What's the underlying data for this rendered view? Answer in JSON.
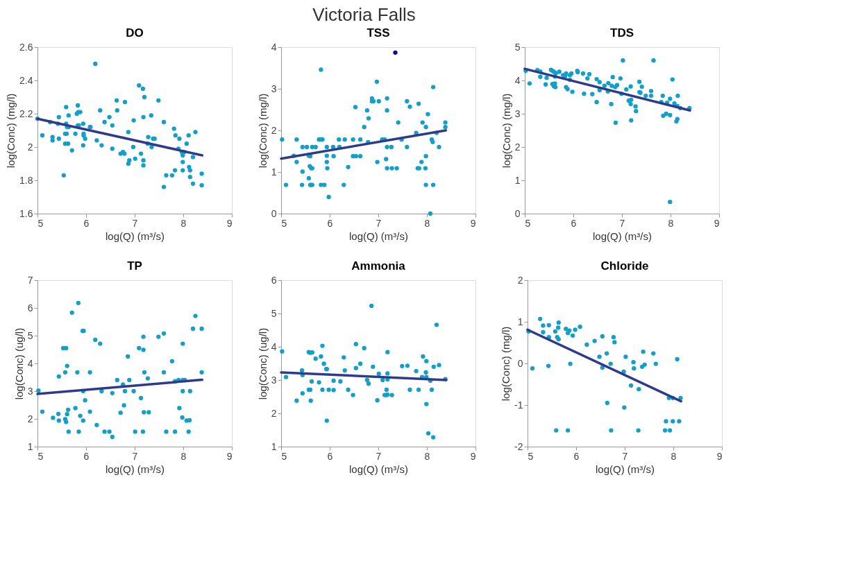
{
  "chart_data": [
    {
      "type": "scatter",
      "title": "DO",
      "annotations": [
        "Victoria Falls"
      ],
      "xlabel": "log(Q) (m³/s)",
      "ylabel": "log(Conc) (mg/l)",
      "xlim": [
        5,
        9
      ],
      "xticks": [
        5,
        6,
        7,
        8,
        9
      ],
      "ylim": [
        1.6,
        2.6
      ],
      "yticks": [
        1.6,
        1.8,
        2,
        2.2,
        2.4,
        2.6
      ],
      "grid": false,
      "marker": "circle",
      "series": [
        {
          "color": "#149fc8",
          "x": [
            5.0,
            5.1,
            5.26,
            5.31,
            5.31,
            5.42,
            5.44,
            5.44,
            5.54,
            5.57,
            5.6,
            5.57,
            5.63,
            5.59,
            5.59,
            5.61,
            5.64,
            5.64,
            5.71,
            5.78,
            5.83,
            5.81,
            5.84,
            5.88,
            5.83,
            5.85,
            5.94,
            5.94,
            5.95,
            5.95,
            5.98,
            6.08,
            6.09,
            6.19,
            6.22,
            6.29,
            6.32,
            6.38,
            6.48,
            6.54,
            6.54,
            6.63,
            6.64,
            6.71,
            6.76,
            6.79,
            6.8,
            6.87,
            6.89,
            6.87,
            6.97,
            6.98,
            7.01,
            7.09,
            7.13,
            7.17,
            7.18,
            7.2,
            7.18,
            7.18,
            7.28,
            7.27,
            7.34,
            7.35,
            7.38,
            7.41,
            7.49,
            7.6,
            7.6,
            7.65,
            7.77,
            7.81,
            7.83,
            7.84,
            7.9,
            7.92,
            7.97,
            8.02,
            7.99,
            7.99,
            7.99,
            8.07,
            8.11,
            8.12,
            8.14,
            8.14,
            8.2,
            8.2,
            8.25,
            8.38,
            8.38
          ],
          "values": [
            2.17,
            2.07,
            2.15,
            2.06,
            2.04,
            2.14,
            2.18,
            2.05,
            1.83,
            2.08,
            2.08,
            2.02,
            2.02,
            2.24,
            2.14,
            2.12,
            2.12,
            2.19,
            1.98,
            2.08,
            2.25,
            2.2,
            2.21,
            2.21,
            2.13,
            2.13,
            2.14,
            2.01,
            2.08,
            2.07,
            2.05,
            2.12,
            2.12,
            2.5,
            2.04,
            2.22,
            2.01,
            2.15,
            2.18,
            2.13,
            1.99,
            2.28,
            2.22,
            1.96,
            1.97,
            1.96,
            2.27,
            1.9,
            1.92,
            2.09,
            2.0,
            2.16,
            1.93,
            2.37,
            1.96,
            2.35,
            2.18,
            2.3,
            1.92,
            1.89,
            2.06,
            2.02,
            2.19,
            2.0,
            2.05,
            2.05,
            2.28,
            2.15,
            1.76,
            1.83,
            1.83,
            2.11,
            1.86,
            2.07,
            1.99,
            2.05,
            1.97,
            1.97,
            1.95,
            1.91,
            1.86,
            2.02,
            2.07,
            1.88,
            1.86,
            1.82,
            1.94,
            1.78,
            2.09,
            1.84,
            1.77
          ]
        },
        {
          "type": "line",
          "marker": "none",
          "color": "#2e3a8c",
          "x": [
            5.0,
            8.39
          ],
          "values": [
            2.17,
            1.95
          ]
        }
      ]
    },
    {
      "type": "scatter",
      "title": "TSS",
      "xlabel": "log(Q) (m³/s)",
      "ylabel": "log(Conc) (mg/l)",
      "xlim": [
        5,
        9
      ],
      "xticks": [
        5,
        6,
        7,
        8,
        9
      ],
      "ylim": [
        0,
        4
      ],
      "yticks": [
        0,
        1,
        2,
        3,
        4
      ],
      "grid": false,
      "marker": "circle",
      "series": [
        {
          "color": "#149fc8",
          "x": [
            5.02,
            5.1,
            5.26,
            5.32,
            5.32,
            5.43,
            5.44,
            5.44,
            5.53,
            5.57,
            5.57,
            5.6,
            5.59,
            5.62,
            5.64,
            5.6,
            5.62,
            5.64,
            5.64,
            5.71,
            5.78,
            5.82,
            5.85,
            5.82,
            5.82,
            5.89,
            5.94,
            5.94,
            5.94,
            5.95,
            5.98,
            6.07,
            6.08,
            6.19,
            6.2,
            6.29,
            6.31,
            6.38,
            6.48,
            6.48,
            6.54,
            6.53,
            6.63,
            6.63,
            6.71,
            6.77,
            6.79,
            6.8,
            6.87,
            6.87,
            6.9,
            6.97,
            6.98,
            7.01,
            7.08,
            7.13,
            7.16,
            7.18,
            7.18,
            7.18,
            7.18,
            7.27,
            7.28,
            7.38,
            7.41,
            7.48,
            7.59,
            7.59,
            7.65,
            7.78,
            7.83,
            7.81,
            7.84,
            7.89,
            7.91,
            7.97,
            7.98,
            7.98,
            7.98,
            8.02,
            8.07,
            8.1,
            8.12,
            8.13,
            8.13,
            8.2,
            8.25,
            8.38,
            8.38
          ],
          "values": [
            1.78,
            0.69,
            1.39,
            1.78,
            1.24,
            0.69,
            1.6,
            1.01,
            1.6,
            0.85,
            1.39,
            1.38,
            1.14,
            1.09,
            1.09,
            0.69,
            0.69,
            0.69,
            1.6,
            1.6,
            1.78,
            1.78,
            1.78,
            3.46,
            0.69,
            0.69,
            1.6,
            1.24,
            1.39,
            1.09,
            0.4,
            1.6,
            1.38,
            1.78,
            1.6,
            0.69,
            1.78,
            1.12,
            1.78,
            1.38,
            1.38,
            2.56,
            1.78,
            1.38,
            2.08,
            2.48,
            1.72,
            2.29,
            2.77,
            2.7,
            2.7,
            3.17,
            1.24,
            2.7,
            1.78,
            1.78,
            1.31,
            2.77,
            2.48,
            1.6,
            1.09,
            1.6,
            1.09,
            1.09,
            2.19,
            1.78,
            2.7,
            1.6,
            2.57,
            1.94,
            2.64,
            1.09,
            1.09,
            1.24,
            2.19,
            1.09,
            1.38,
            2.08,
            0.69,
            2.39,
            0.0,
            1.78,
            1.72,
            3.04,
            0.69,
            1.94,
            1.6,
            2.19,
            2.08
          ]
        },
        {
          "color": "#0a0aa0",
          "x": [
            7.35
          ],
          "values": [
            3.87
          ]
        },
        {
          "type": "line",
          "marker": "none",
          "color": "#2e3a8c",
          "x": [
            5.0,
            8.39
          ],
          "values": [
            1.32,
            2.0
          ]
        }
      ]
    },
    {
      "type": "scatter",
      "title": "TDS",
      "xlabel": "log(Q) (m³/s)",
      "ylabel": "log(Conc) (mg/l)",
      "xlim": [
        5,
        9
      ],
      "xticks": [
        5,
        6,
        7,
        8,
        9
      ],
      "ylim": [
        0,
        5
      ],
      "yticks": [
        0,
        1,
        2,
        3,
        4,
        5
      ],
      "grid": false,
      "marker": "circle",
      "series": [
        {
          "color": "#149fc8",
          "x": [
            5.02,
            5.1,
            5.26,
            5.32,
            5.32,
            5.43,
            5.45,
            5.54,
            5.57,
            5.6,
            5.64,
            5.57,
            5.6,
            5.63,
            5.62,
            5.62,
            5.71,
            5.79,
            5.83,
            5.85,
            5.85,
            5.88,
            5.93,
            5.96,
            5.93,
            5.98,
            6.08,
            6.09,
            6.2,
            6.22,
            6.29,
            6.33,
            6.39,
            6.48,
            6.48,
            6.54,
            6.54,
            6.64,
            6.71,
            6.72,
            6.78,
            6.79,
            6.81,
            6.86,
            6.9,
            6.87,
            6.97,
            6.99,
            7.02,
            7.09,
            7.14,
            7.19,
            7.18,
            7.18,
            7.19,
            7.28,
            7.29,
            7.36,
            7.36,
            7.38,
            7.41,
            7.49,
            7.6,
            7.6,
            7.65,
            7.81,
            7.84,
            7.85,
            7.91,
            7.93,
            7.99,
            7.99,
            7.99,
            8.04,
            8.08,
            8.12,
            8.14,
            8.14,
            8.15,
            8.2,
            8.39
          ],
          "values": [
            4.29,
            3.91,
            4.31,
            4.27,
            4.11,
            3.88,
            4.08,
            4.32,
            4.29,
            4.26,
            4.22,
            3.89,
            3.83,
            3.8,
            3.91,
            4.12,
            4.26,
            4.16,
            4.13,
            4.21,
            3.8,
            3.74,
            4.16,
            4.21,
            4.02,
            3.66,
            4.29,
            4.25,
            4.21,
            3.6,
            4.06,
            4.19,
            3.59,
            4.04,
            3.35,
            3.95,
            3.71,
            3.84,
            3.67,
            3.92,
            3.29,
            3.84,
            4.1,
            3.8,
            3.86,
            2.73,
            4.06,
            3.6,
            4.6,
            3.73,
            3.39,
            3.42,
            3.29,
            3.82,
            2.8,
            3.22,
            3.08,
            3.96,
            3.65,
            3.63,
            3.81,
            3.54,
            3.68,
            3.54,
            4.6,
            3.35,
            3.54,
            2.94,
            3.0,
            3.33,
            3.45,
            2.96,
            0.35,
            4.03,
            3.31,
            2.77,
            2.84,
            3.23,
            3.54,
            3.17,
            3.17
          ]
        },
        {
          "type": "line",
          "marker": "none",
          "color": "#2e3a8c",
          "x": [
            5.0,
            8.4
          ],
          "values": [
            4.35,
            3.1
          ]
        }
      ]
    },
    {
      "type": "scatter",
      "title": "TP",
      "xlabel": "log(Q) (m³/s)",
      "ylabel": "log(Conc) (ug/l)",
      "xlim": [
        5,
        9
      ],
      "xticks": [
        5,
        6,
        7,
        8,
        9
      ],
      "ylim": [
        1,
        7
      ],
      "yticks": [
        1,
        2,
        3,
        4,
        5,
        6,
        7
      ],
      "grid": false,
      "marker": "circle",
      "series": [
        {
          "color": "#149fc8",
          "x": [
            5.02,
            5.1,
            5.32,
            5.43,
            5.44,
            5.44,
            5.53,
            5.59,
            5.57,
            5.59,
            5.57,
            5.61,
            5.61,
            5.63,
            5.64,
            5.71,
            5.78,
            5.82,
            5.84,
            5.85,
            5.88,
            5.93,
            5.95,
            5.94,
            5.94,
            5.98,
            6.08,
            6.08,
            6.19,
            6.22,
            6.29,
            6.32,
            6.38,
            6.48,
            6.54,
            6.54,
            6.64,
            6.71,
            6.76,
            6.78,
            6.8,
            6.86,
            6.89,
            6.98,
            7.01,
            7.09,
            7.13,
            7.17,
            7.18,
            7.18,
            7.19,
            7.2,
            7.27,
            7.29,
            7.49,
            7.6,
            7.6,
            7.65,
            7.77,
            7.83,
            7.9,
            7.83,
            7.92,
            7.98,
            7.99,
            8.03,
            7.99,
            7.99,
            8.07,
            8.13,
            8.11,
            8.14,
            8.2,
            8.25,
            8.38,
            8.38
          ],
          "values": [
            3.02,
            2.26,
            2.04,
            2.18,
            3.53,
            1.94,
            4.55,
            4.55,
            1.99,
            1.89,
            3.68,
            3.91,
            2.17,
            2.33,
            1.54,
            5.83,
            2.39,
            3.68,
            6.18,
            1.54,
            2.11,
            5.17,
            5.17,
            1.94,
            3.0,
            2.67,
            3.68,
            2.26,
            4.85,
            1.78,
            4.71,
            3.0,
            1.54,
            1.54,
            2.93,
            1.35,
            3.4,
            2.22,
            3.24,
            2.49,
            3.0,
            4.25,
            3.4,
            3.0,
            1.54,
            4.55,
            2.75,
            1.54,
            4.96,
            4.49,
            2.24,
            3.68,
            3.46,
            2.24,
            4.96,
            5.08,
            3.68,
            1.54,
            4.08,
            3.36,
            3.4,
            1.54,
            2.39,
            2.05,
            3.4,
            3.4,
            4.71,
            3.0,
            1.94,
            1.95,
            1.54,
            3.0,
            5.25,
            5.71,
            5.25,
            3.68
          ]
        },
        {
          "type": "line",
          "marker": "none",
          "color": "#2e3a8c",
          "x": [
            5.0,
            8.39
          ],
          "values": [
            2.9,
            3.41
          ]
        }
      ]
    },
    {
      "type": "scatter",
      "title": "Ammonia",
      "xlabel": "log(Q) (m³/s)",
      "ylabel": "log(Conc) (ug/l)",
      "xlim": [
        5,
        9
      ],
      "xticks": [
        5,
        6,
        7,
        8,
        9
      ],
      "ylim": [
        1,
        6
      ],
      "yticks": [
        1,
        2,
        3,
        4,
        5,
        6
      ],
      "grid": false,
      "marker": "circle",
      "series": [
        {
          "color": "#149fc8",
          "x": [
            5.02,
            5.1,
            5.32,
            5.43,
            5.44,
            5.44,
            5.57,
            5.6,
            5.64,
            5.57,
            5.6,
            5.61,
            5.63,
            5.71,
            5.78,
            5.82,
            5.85,
            5.85,
            5.88,
            5.93,
            5.94,
            5.94,
            5.98,
            6.08,
            6.08,
            6.22,
            6.29,
            6.31,
            6.38,
            6.48,
            6.54,
            6.54,
            6.63,
            6.71,
            6.77,
            6.8,
            6.86,
            6.89,
            6.98,
            7.01,
            7.09,
            7.13,
            7.17,
            7.19,
            7.17,
            7.19,
            7.19,
            7.19,
            7.28,
            7.49,
            7.6,
            7.65,
            7.78,
            7.83,
            7.9,
            7.92,
            7.98,
            7.99,
            7.99,
            7.99,
            8.03,
            8.07,
            8.1,
            8.13,
            8.14,
            8.2,
            8.25,
            8.38
          ],
          "values": [
            3.86,
            3.09,
            2.38,
            3.29,
            3.15,
            2.6,
            3.84,
            3.82,
            3.83,
            2.71,
            2.71,
            2.38,
            2.96,
            3.64,
            2.93,
            3.71,
            4.03,
            2.71,
            3.49,
            3.33,
            3.33,
            1.78,
            2.71,
            2.98,
            2.7,
            2.96,
            3.68,
            3.29,
            2.71,
            2.55,
            4.08,
            3.36,
            3.49,
            3.96,
            3.0,
            2.89,
            5.23,
            3.4,
            2.39,
            3.19,
            3.0,
            2.55,
            2.55,
            2.56,
            2.71,
            3.84,
            3.2,
            3.02,
            2.55,
            3.42,
            3.43,
            2.71,
            3.27,
            2.71,
            3.09,
            3.71,
            3.23,
            3.57,
            3.09,
            2.28,
            1.4,
            2.98,
            2.71,
            1.28,
            3.4,
            4.66,
            3.45,
            3.03
          ]
        },
        {
          "type": "line",
          "marker": "none",
          "color": "#2e3a8c",
          "x": [
            5.0,
            8.4
          ],
          "values": [
            3.23,
            3.0
          ]
        }
      ]
    },
    {
      "type": "scatter",
      "title": "Chloride",
      "xlabel": "log(Q) (m³/s)",
      "ylabel": "log(Conc) (mg/l)",
      "xlim": [
        5,
        9
      ],
      "xticks": [
        5,
        6,
        7,
        8,
        9
      ],
      "ylim": [
        -2,
        2
      ],
      "yticks": [
        -2,
        -1,
        0,
        1,
        2
      ],
      "grid": false,
      "marker": "circle",
      "series": [
        {
          "color": "#149fc8",
          "x": [
            5.02,
            5.1,
            5.26,
            5.32,
            5.32,
            5.43,
            5.44,
            5.44,
            5.57,
            5.61,
            5.64,
            5.63,
            5.64,
            5.59,
            5.83,
            5.79,
            5.83,
            5.86,
            5.88,
            5.93,
            5.98,
            6.08,
            6.22,
            6.38,
            6.48,
            6.54,
            6.54,
            6.63,
            6.64,
            6.71,
            6.72,
            6.77,
            6.79,
            6.98,
            6.99,
            7.02,
            7.13,
            7.18,
            7.19,
            7.28,
            7.29,
            7.36,
            7.41,
            7.38,
            7.59,
            7.64,
            7.83,
            7.93,
            7.85,
            7.91,
            7.99,
            7.99,
            8.08,
            8.12,
            8.15
          ],
          "values": [
            0.77,
            -0.12,
            1.07,
            0.91,
            0.75,
            -0.06,
            0.92,
            0.63,
            0.77,
            0.63,
            0.58,
            0.86,
            0.98,
            -1.61,
            -1.61,
            0.83,
            0.73,
            0.79,
            -0.01,
            0.67,
            0.81,
            0.88,
            0.45,
            0.54,
            0.16,
            0.65,
            -0.1,
            0.24,
            -0.95,
            -0.01,
            -1.61,
            0.63,
            0.51,
            -0.2,
            -1.06,
            0.16,
            -0.53,
            0.03,
            -0.12,
            -1.61,
            -0.62,
            -0.08,
            -0.03,
            0.28,
            0.24,
            -0.01,
            -1.61,
            -1.61,
            -1.39,
            -0.83,
            -0.83,
            -1.39,
            0.1,
            -1.39,
            -0.83
          ]
        },
        {
          "type": "line",
          "marker": "none",
          "color": "#2e3a8c",
          "x": [
            5.0,
            8.16
          ],
          "values": [
            0.81,
            -0.91
          ]
        }
      ]
    }
  ]
}
